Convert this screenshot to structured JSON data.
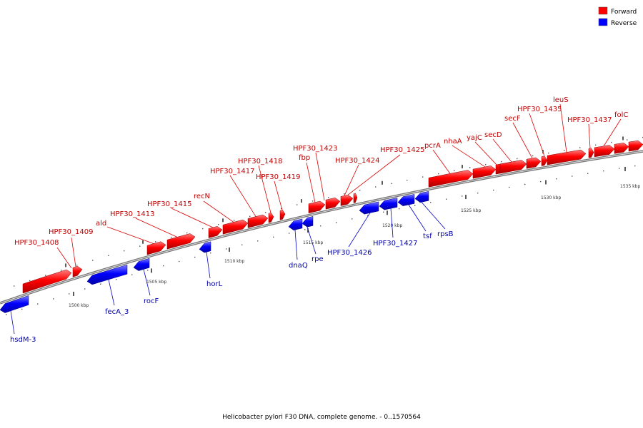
{
  "legend": {
    "forward": {
      "label": "Forward",
      "color": "#ff0000"
    },
    "reverse": {
      "label": "Reverse",
      "color": "#0000ff"
    }
  },
  "caption": "Helicobacter pylori F30 DNA, complete genome. - 0..1570564",
  "scale": {
    "labels": [
      "1500 kbp",
      "1505 kbp",
      "1510 kbp",
      "1515 kbp",
      "1520 kbp",
      "1525 kbp",
      "1530 kbp",
      "1535 kbp"
    ]
  },
  "genes": [
    {
      "name": "hsdM-3",
      "strand": "reverse"
    },
    {
      "name": "HPF30_1408",
      "strand": "forward"
    },
    {
      "name": "HPF30_1409",
      "strand": "forward"
    },
    {
      "name": "fecA_3",
      "strand": "reverse"
    },
    {
      "name": "rocF",
      "strand": "reverse"
    },
    {
      "name": "ald",
      "strand": "forward"
    },
    {
      "name": "HPF30_1413",
      "strand": "forward"
    },
    {
      "name": "horL",
      "strand": "reverse"
    },
    {
      "name": "HPF30_1415",
      "strand": "forward"
    },
    {
      "name": "recN",
      "strand": "forward"
    },
    {
      "name": "HPF30_1417",
      "strand": "forward"
    },
    {
      "name": "HPF30_1418",
      "strand": "forward"
    },
    {
      "name": "HPF30_1419",
      "strand": "forward"
    },
    {
      "name": "dnaQ",
      "strand": "reverse"
    },
    {
      "name": "rpe",
      "strand": "reverse"
    },
    {
      "name": "fbp",
      "strand": "forward"
    },
    {
      "name": "HPF30_1423",
      "strand": "forward"
    },
    {
      "name": "HPF30_1424",
      "strand": "forward"
    },
    {
      "name": "HPF30_1425",
      "strand": "forward"
    },
    {
      "name": "HPF30_1426",
      "strand": "reverse"
    },
    {
      "name": "HPF30_1427",
      "strand": "reverse"
    },
    {
      "name": "tsf",
      "strand": "reverse"
    },
    {
      "name": "rpsB",
      "strand": "reverse"
    },
    {
      "name": "pcrA",
      "strand": "forward"
    },
    {
      "name": "nhaA",
      "strand": "forward"
    },
    {
      "name": "yajC",
      "strand": "forward"
    },
    {
      "name": "secD",
      "strand": "forward"
    },
    {
      "name": "secF",
      "strand": "forward"
    },
    {
      "name": "HPF30_1435",
      "strand": "forward"
    },
    {
      "name": "leuS",
      "strand": "forward"
    },
    {
      "name": "HPF30_1437",
      "strand": "forward"
    },
    {
      "name": "folC",
      "strand": "forward"
    }
  ]
}
